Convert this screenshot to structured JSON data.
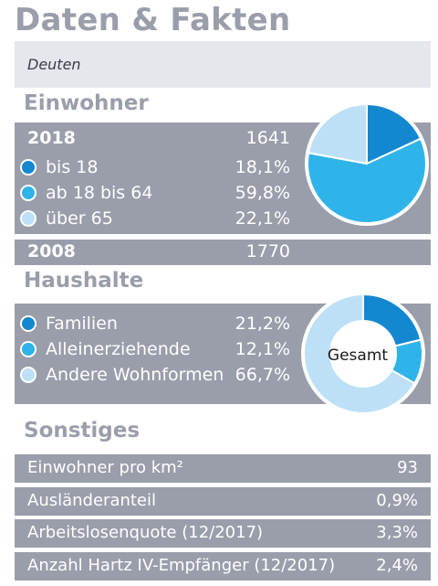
{
  "header": {
    "title": "Daten & Fakten",
    "subtitle": "Deuten"
  },
  "einwohner": {
    "section_title": "Einwohner",
    "year_2018": {
      "label": "2018",
      "value": "1641"
    },
    "age_groups": [
      {
        "label": "bis 18",
        "value": "18,1%",
        "pct": 18.1,
        "color": "#1388d0"
      },
      {
        "label": "ab 18 bis 64",
        "value": "59,8%",
        "pct": 59.8,
        "color": "#2fb4ea"
      },
      {
        "label": "über 65",
        "value": "22,1%",
        "pct": 22.1,
        "color": "#bde0f6"
      }
    ],
    "year_2008": {
      "label": "2008",
      "value": "1770"
    }
  },
  "haushalte": {
    "section_title": "Haushalte",
    "items": [
      {
        "label": "Familien",
        "value": "21,2%",
        "pct": 21.2,
        "color": "#1388d0"
      },
      {
        "label": "Alleinerziehende",
        "value": "12,1%",
        "pct": 12.1,
        "color": "#2fb4ea"
      },
      {
        "label": "Andere Wohnformen",
        "value": "66,7%",
        "pct": 66.7,
        "color": "#bde0f6"
      }
    ],
    "donut_label": "Gesamt"
  },
  "sonstiges": {
    "section_title": "Sonstiges",
    "rows": [
      {
        "label": "Einwohner pro km²",
        "value": "93"
      },
      {
        "label": "Ausländeranteil",
        "value": "0,9%"
      },
      {
        "label": "Arbeitslosenquote (12/2017)",
        "value": "3,3%"
      },
      {
        "label": "Anzahl Hartz IV-Empfänger (12/2017)",
        "value": "2,4%"
      }
    ]
  },
  "colors": {
    "panel": "#9a9eab",
    "subtitle_bg": "#e6e7ed"
  }
}
